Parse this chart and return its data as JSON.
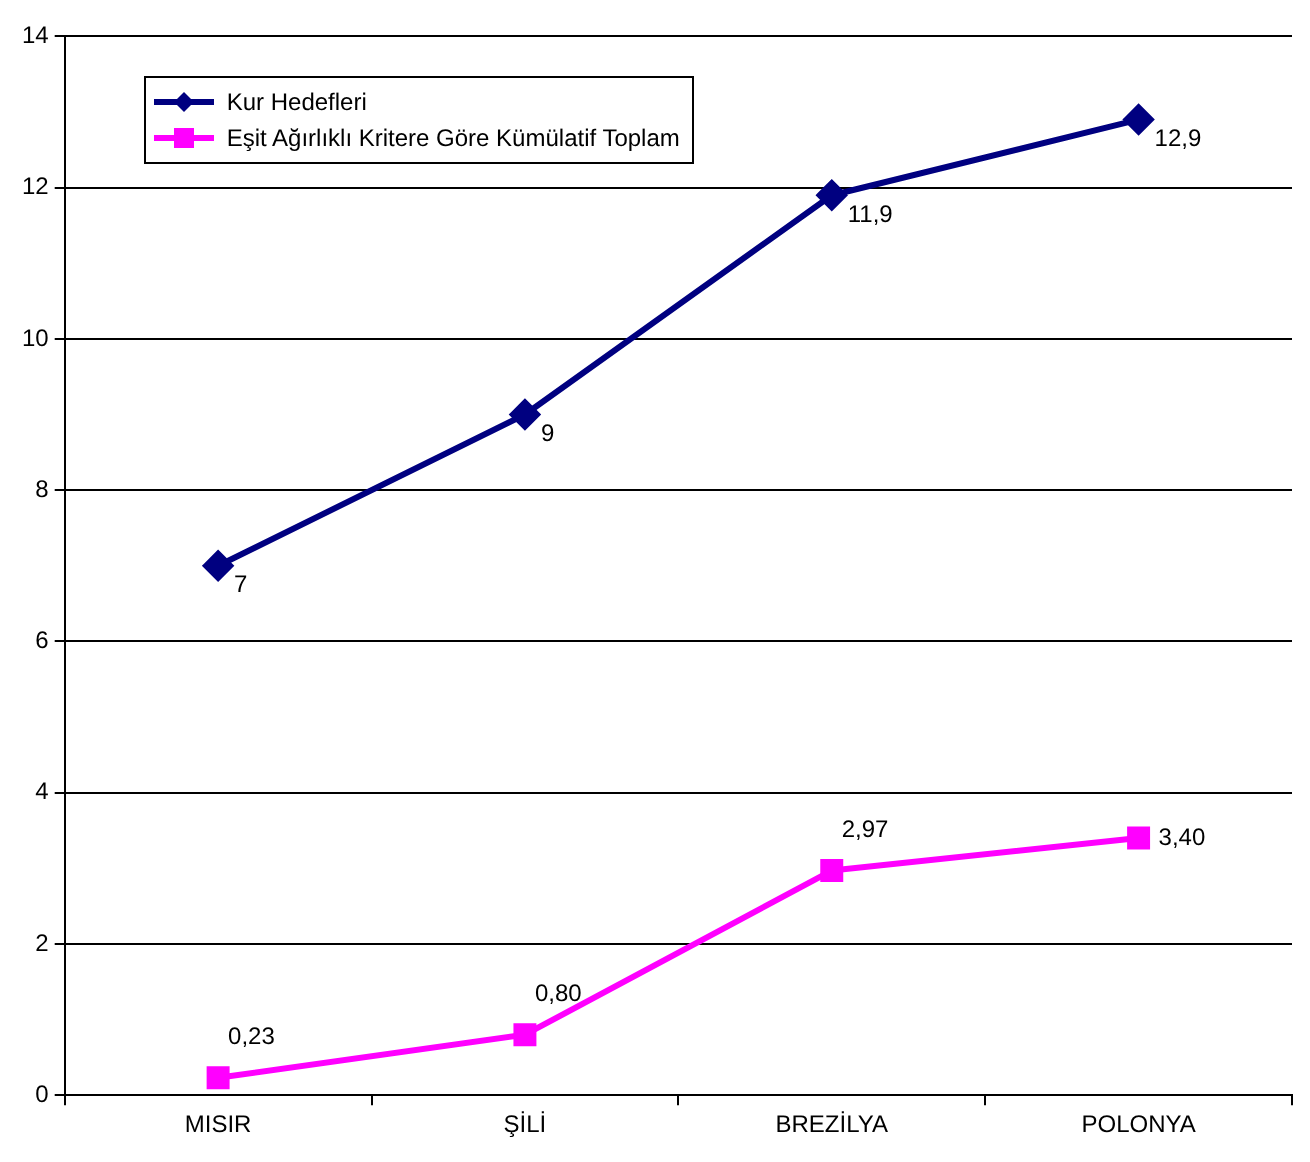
{
  "chart_data": {
    "type": "line",
    "categories": [
      "MISIR",
      "ŞİLİ",
      "BREZİLYA",
      "POLONYA"
    ],
    "series": [
      {
        "name": "Kur Hedefleri",
        "color": "#000080",
        "marker": "diamond",
        "values": [
          7,
          9,
          11.9,
          12.9
        ],
        "value_labels": [
          "7",
          "9",
          "11,9",
          "12,9"
        ]
      },
      {
        "name": "Eşit Ağırlıklı Kritere Göre Kümülatif Toplam",
        "color": "#ff00ff",
        "marker": "square",
        "values": [
          0.23,
          0.8,
          2.97,
          3.4
        ],
        "value_labels": [
          "0,23",
          "0,80",
          "2,97",
          "3,40"
        ]
      }
    ],
    "ylim": [
      0,
      14
    ],
    "yticks": [
      0,
      2,
      4,
      6,
      8,
      10,
      12,
      14
    ],
    "grid": "y",
    "legend": "top left",
    "line_style": "solid"
  }
}
